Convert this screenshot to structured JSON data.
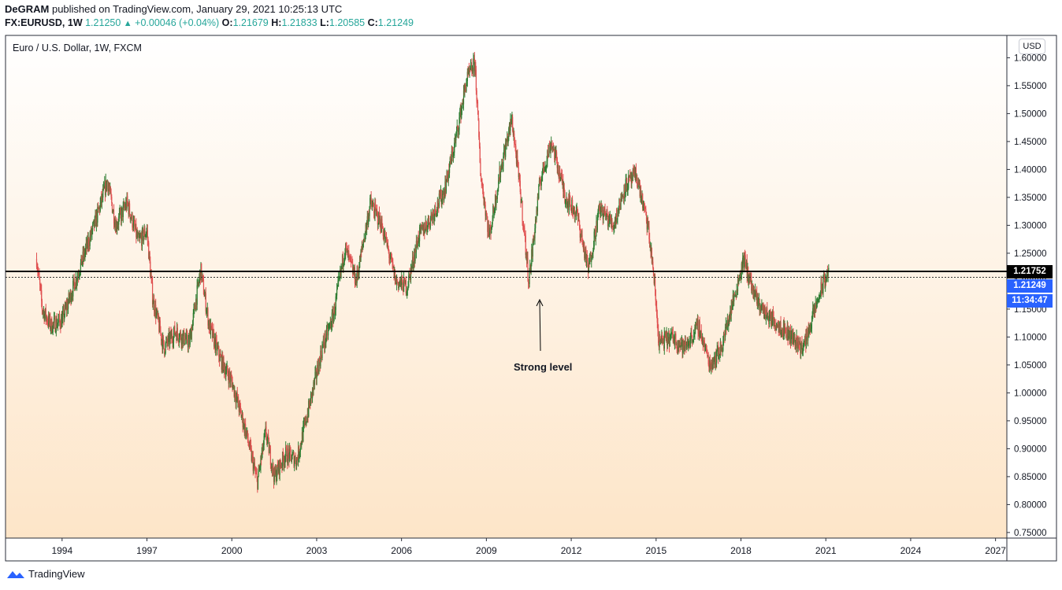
{
  "header": {
    "author": "DeGRAM",
    "published_text": "published on TradingView.com, January 29, 2021 10:25:13 UTC",
    "symbol": "FX:EURUSD, 1W",
    "price": "1.21250",
    "change": "+0.00046 (+0.04%)",
    "open_label": "O:",
    "open": "1.21679",
    "high_label": "H:",
    "high": "1.21833",
    "low_label": "L:",
    "low": "1.20585",
    "close_label": "C:",
    "close": "1.21249"
  },
  "chart_title": "Euro / U.S. Dollar, 1W, FXCM",
  "currency_button": "USD",
  "annotation": "Strong level",
  "price_tags": {
    "level": "1.21752",
    "last": "1.21249",
    "countdown": "11:34:47"
  },
  "footer": {
    "brand": "TradingView"
  },
  "colors": {
    "up": "#26a69a",
    "candle_up": "#2e7d32",
    "candle_down": "#e05050",
    "level_line": "#000000",
    "last_price_tag": "#2962ff",
    "background_top": "#ffffff",
    "background_bottom": "#fde5c8"
  },
  "chart_data": {
    "type": "candlestick",
    "title": "Euro / U.S. Dollar, 1W, FXCM",
    "x_ticks": [
      "1994",
      "1997",
      "2000",
      "2003",
      "2006",
      "2009",
      "2012",
      "2015",
      "2018",
      "2021",
      "2024",
      "2027"
    ],
    "y_ticks": [
      "0.75000",
      "0.80000",
      "0.85000",
      "0.90000",
      "0.95000",
      "1.00000",
      "1.05000",
      "1.10000",
      "1.15000",
      "1.20000",
      "1.25000",
      "1.30000",
      "1.35000",
      "1.40000",
      "1.45000",
      "1.50000",
      "1.55000",
      "1.60000"
    ],
    "xlim": [
      1992.0,
      2027.4
    ],
    "ylim": [
      0.74,
      1.64
    ],
    "horizontal_level": 1.21752,
    "last_close": 1.21249,
    "series_path": [
      [
        1993.1,
        1.24
      ],
      [
        1993.3,
        1.15
      ],
      [
        1993.6,
        1.12
      ],
      [
        1994.0,
        1.13
      ],
      [
        1994.4,
        1.19
      ],
      [
        1994.8,
        1.25
      ],
      [
        1995.2,
        1.31
      ],
      [
        1995.6,
        1.38
      ],
      [
        1995.9,
        1.3
      ],
      [
        1996.3,
        1.34
      ],
      [
        1996.7,
        1.27
      ],
      [
        1997.0,
        1.29
      ],
      [
        1997.2,
        1.17
      ],
      [
        1997.6,
        1.08
      ],
      [
        1998.0,
        1.11
      ],
      [
        1998.5,
        1.09
      ],
      [
        1998.9,
        1.22
      ],
      [
        1999.2,
        1.12
      ],
      [
        1999.6,
        1.06
      ],
      [
        2000.0,
        1.02
      ],
      [
        2000.5,
        0.93
      ],
      [
        2000.9,
        0.84
      ],
      [
        2001.2,
        0.93
      ],
      [
        2001.5,
        0.85
      ],
      [
        2001.9,
        0.89
      ],
      [
        2002.3,
        0.88
      ],
      [
        2002.8,
        0.99
      ],
      [
        2003.2,
        1.08
      ],
      [
        2003.6,
        1.14
      ],
      [
        2004.0,
        1.26
      ],
      [
        2004.4,
        1.2
      ],
      [
        2004.9,
        1.34
      ],
      [
        2005.3,
        1.3
      ],
      [
        2005.8,
        1.2
      ],
      [
        2006.2,
        1.19
      ],
      [
        2006.6,
        1.28
      ],
      [
        2007.0,
        1.31
      ],
      [
        2007.5,
        1.36
      ],
      [
        2007.9,
        1.45
      ],
      [
        2008.3,
        1.56
      ],
      [
        2008.6,
        1.59
      ],
      [
        2008.8,
        1.39
      ],
      [
        2009.1,
        1.28
      ],
      [
        2009.5,
        1.4
      ],
      [
        2009.9,
        1.49
      ],
      [
        2010.2,
        1.36
      ],
      [
        2010.5,
        1.2
      ],
      [
        2010.9,
        1.38
      ],
      [
        2011.3,
        1.45
      ],
      [
        2011.8,
        1.35
      ],
      [
        2012.2,
        1.32
      ],
      [
        2012.6,
        1.22
      ],
      [
        2013.0,
        1.33
      ],
      [
        2013.5,
        1.3
      ],
      [
        2013.9,
        1.37
      ],
      [
        2014.3,
        1.39
      ],
      [
        2014.7,
        1.3
      ],
      [
        2014.9,
        1.22
      ],
      [
        2015.1,
        1.09
      ],
      [
        2015.6,
        1.1
      ],
      [
        2016.0,
        1.08
      ],
      [
        2016.5,
        1.12
      ],
      [
        2016.9,
        1.05
      ],
      [
        2017.3,
        1.08
      ],
      [
        2017.8,
        1.18
      ],
      [
        2018.1,
        1.24
      ],
      [
        2018.5,
        1.17
      ],
      [
        2018.9,
        1.14
      ],
      [
        2019.4,
        1.12
      ],
      [
        2019.8,
        1.1
      ],
      [
        2020.2,
        1.08
      ],
      [
        2020.5,
        1.13
      ],
      [
        2020.8,
        1.18
      ],
      [
        2021.1,
        1.22
      ]
    ]
  }
}
